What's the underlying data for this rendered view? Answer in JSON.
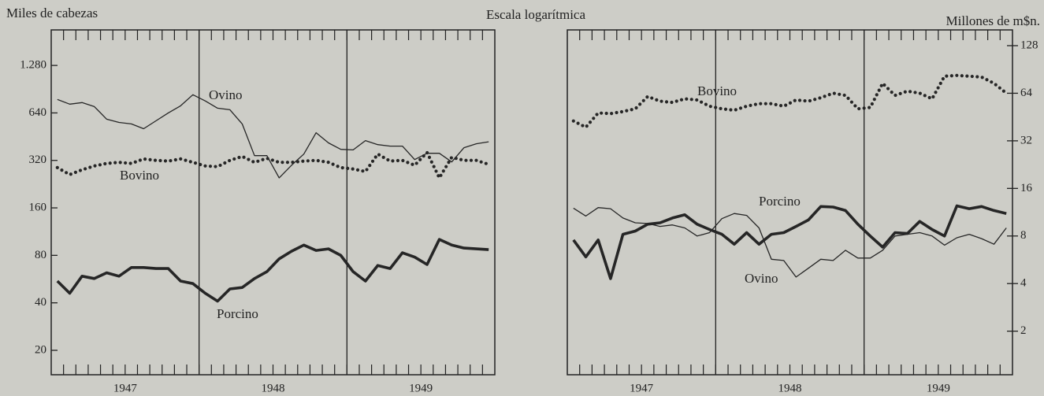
{
  "header": {
    "text": "Escala logarítmica"
  },
  "chart_data": [
    {
      "type": "line",
      "y_label": "Miles de cabezas",
      "log_scale": true,
      "categories": [
        null,
        null,
        null,
        null,
        null,
        "1947",
        null,
        null,
        null,
        null,
        null,
        null,
        null,
        null,
        null,
        null,
        null,
        "1948",
        null,
        null,
        null,
        null,
        null,
        null,
        null,
        null,
        null,
        null,
        null,
        "1949",
        null,
        null,
        null,
        null,
        null,
        null
      ],
      "ylim": [
        14,
        2150
      ],
      "yticks": [
        20,
        40,
        80,
        160,
        320,
        640,
        {
          "value": 1280,
          "label": "1.280"
        }
      ],
      "series": [
        {
          "name": "Ovino",
          "color": "#262626",
          "line_style": "thin",
          "values": [
            779,
            727,
            744,
            702,
            584,
            557,
            545,
            508,
            570,
            640,
            710,
            835,
            762,
            686,
            670,
            545,
            343,
            343,
            248,
            298,
            351,
            479,
            413,
            376,
            373,
            427,
            403,
            394,
            394,
            324,
            355,
            355,
            313,
            385,
            408,
            420
          ]
        },
        {
          "name": "Bovino",
          "color": "#262626",
          "line_style": "dotted",
          "values": [
            288,
            260,
            279,
            295,
            306,
            311,
            306,
            327,
            320,
            317,
            327,
            311,
            295,
            292,
            320,
            339,
            311,
            330,
            311,
            311,
            317,
            320,
            311,
            288,
            282,
            272,
            351,
            317,
            320,
            298,
            359,
            248,
            335,
            320,
            320,
            302
          ]
        },
        {
          "name": "Porcino",
          "color": "#262626",
          "line_style": "thick",
          "values": [
            55,
            46,
            59,
            57,
            62,
            59,
            67,
            67,
            66,
            66,
            55,
            53,
            46,
            41,
            49,
            50,
            57,
            63,
            76,
            85,
            93,
            86,
            88,
            80,
            63,
            55,
            69,
            66,
            83,
            78,
            70,
            101,
            93,
            89,
            88,
            87
          ]
        }
      ]
    },
    {
      "type": "line",
      "y_label": "Millones de m$n.",
      "log_scale": true,
      "categories": [
        null,
        null,
        null,
        null,
        null,
        "1947",
        null,
        null,
        null,
        null,
        null,
        null,
        null,
        null,
        null,
        null,
        null,
        "1948",
        null,
        null,
        null,
        null,
        null,
        null,
        null,
        null,
        null,
        null,
        null,
        "1949",
        null,
        null,
        null,
        null,
        null,
        null
      ],
      "ylim": [
        1.06,
        161
      ],
      "yticks": [
        2,
        4,
        8,
        16,
        32,
        64,
        128
      ],
      "series": [
        {
          "name": "Bovino",
          "color": "#262626",
          "line_style": "dotted",
          "values": [
            42.7,
            39,
            48,
            47.6,
            49,
            51,
            61,
            57,
            56,
            59,
            58,
            53,
            51,
            50,
            53,
            55,
            55,
            53,
            58,
            57,
            60,
            64,
            62,
            51,
            52,
            74,
            62,
            66,
            64,
            59,
            82,
            83,
            82,
            81,
            74,
            64
          ]
        },
        {
          "name": "Porcino",
          "color": "#262626",
          "line_style": "thick",
          "values": [
            7.55,
            5.9,
            7.55,
            4.3,
            8.2,
            8.6,
            9.5,
            9.7,
            10.4,
            10.9,
            9.5,
            8.8,
            8.2,
            7.1,
            8.4,
            7.1,
            8.2,
            8.4,
            9.2,
            10.1,
            12.3,
            12.2,
            11.6,
            9.5,
            8,
            6.8,
            8.4,
            8.3,
            9.9,
            8.8,
            8,
            12.4,
            11.9,
            12.3,
            11.6,
            11.1
          ]
        },
        {
          "name": "Ovino",
          "color": "#262626",
          "line_style": "thin",
          "values": [
            12,
            10.7,
            12.1,
            11.9,
            10.4,
            9.7,
            9.6,
            9.2,
            9.4,
            9,
            8,
            8.4,
            10.3,
            11.1,
            10.8,
            9,
            5.7,
            5.6,
            4.4,
            5,
            5.7,
            5.6,
            6.5,
            5.8,
            5.8,
            6.5,
            8,
            8.2,
            8.4,
            8,
            7,
            7.8,
            8.2,
            7.7,
            7.1,
            9
          ]
        }
      ]
    }
  ]
}
